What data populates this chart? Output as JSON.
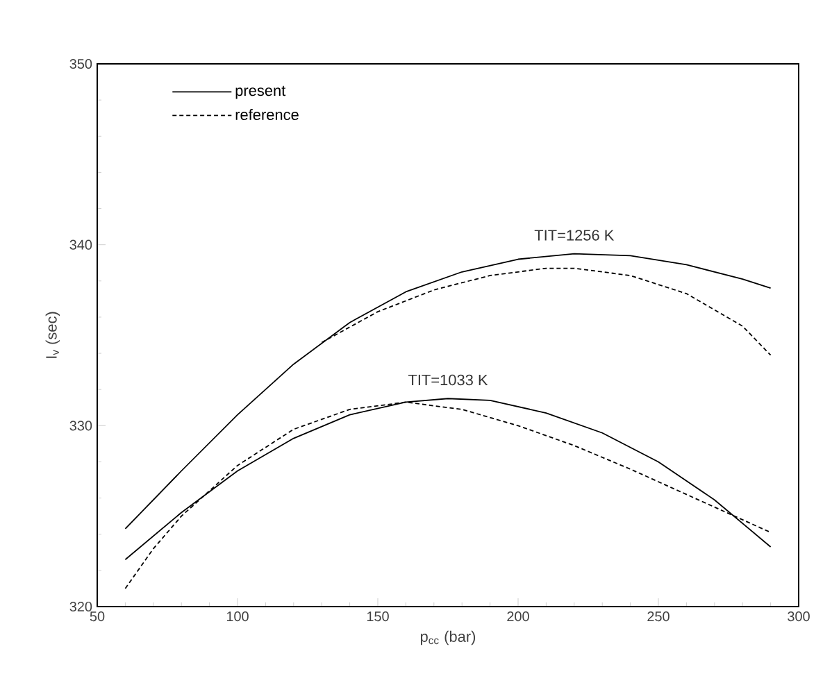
{
  "chart_data": {
    "type": "line",
    "xlabel": "p$_{cc}$ (bar)",
    "ylabel": "I$_{v}$ (sec)",
    "xlim": [
      50,
      300
    ],
    "ylim": [
      320,
      350
    ],
    "xticks": [
      50,
      100,
      150,
      200,
      250,
      300
    ],
    "yticks": [
      320,
      330,
      340,
      350
    ],
    "legend": "top left",
    "annotations": [
      "TIT=1256 K",
      "TIT=1033 K"
    ],
    "series": [
      {
        "name": "present",
        "color": "#000000",
        "line_style": "solid",
        "x": [
          60,
          80,
          100,
          120,
          140,
          160,
          180,
          200,
          220,
          240,
          260,
          280,
          290
        ],
        "values": [
          324.3,
          327.5,
          330.6,
          333.4,
          335.7,
          337.4,
          338.5,
          339.2,
          339.5,
          339.4,
          338.9,
          338.1,
          337.6
        ]
      },
      {
        "name": "reference",
        "color": "#000000",
        "line_style": "dashed",
        "x": [
          130,
          150,
          170,
          190,
          210,
          220,
          240,
          260,
          280,
          290
        ],
        "values": [
          334.6,
          336.3,
          337.5,
          338.3,
          338.7,
          338.7,
          338.3,
          337.3,
          335.5,
          333.9
        ]
      },
      {
        "color": "#000000",
        "line_style": "solid",
        "x": [
          60,
          80,
          100,
          120,
          140,
          160,
          175,
          190,
          210,
          230,
          250,
          270,
          290
        ],
        "values": [
          322.6,
          325.2,
          327.5,
          329.3,
          330.6,
          331.3,
          331.5,
          331.4,
          330.7,
          329.6,
          328.0,
          325.9,
          323.3
        ]
      },
      {
        "color": "#000000",
        "line_style": "dashed",
        "x": [
          60,
          70,
          80,
          100,
          120,
          140,
          160,
          180,
          200,
          220,
          240,
          260,
          280,
          290
        ],
        "values": [
          321.0,
          323.2,
          325.0,
          327.8,
          329.8,
          330.9,
          331.3,
          330.9,
          330.0,
          328.9,
          327.6,
          326.2,
          324.8,
          324.1
        ]
      }
    ]
  }
}
